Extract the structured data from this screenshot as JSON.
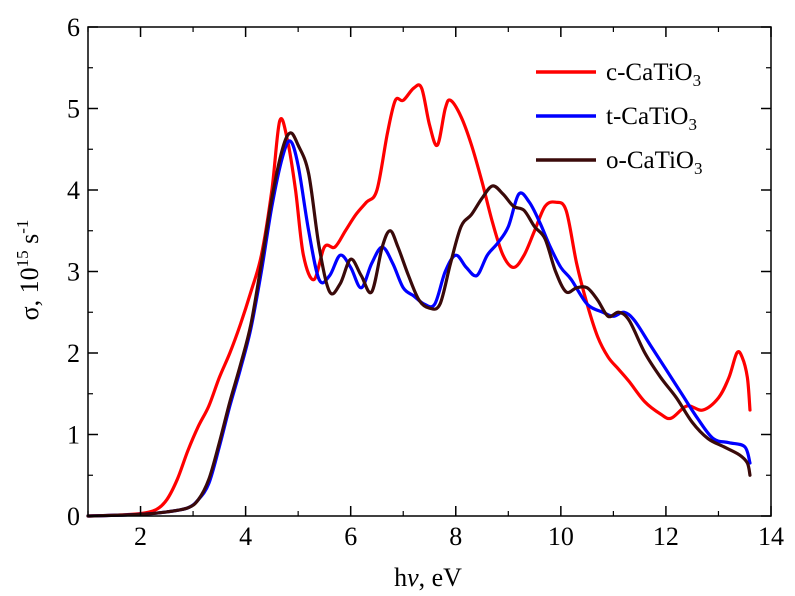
{
  "chart_data": {
    "type": "line",
    "xlabel": {
      "pre": "h",
      "italic": "ν",
      "post": ", eV"
    },
    "ylabel": {
      "main": "σ, 10",
      "exp": "15",
      "unit": " s",
      "unit_exp": "-1"
    },
    "xlim": [
      1,
      14
    ],
    "ylim": [
      0,
      6
    ],
    "xticks": [
      2,
      4,
      6,
      8,
      10,
      12,
      14
    ],
    "yticks": [
      0,
      1,
      2,
      3,
      4,
      5,
      6
    ],
    "grid": false,
    "legend_position": "top-right",
    "series": [
      {
        "name": "c-CaTiO",
        "name_sub": "3",
        "color": "#ff0000",
        "x": [
          1.0,
          1.5,
          2.0,
          2.3,
          2.5,
          2.7,
          2.9,
          3.1,
          3.3,
          3.5,
          3.7,
          3.9,
          4.1,
          4.3,
          4.5,
          4.65,
          4.8,
          4.95,
          5.1,
          5.3,
          5.5,
          5.7,
          5.9,
          6.1,
          6.3,
          6.5,
          6.7,
          6.85,
          7.0,
          7.2,
          7.35,
          7.5,
          7.65,
          7.8,
          7.9,
          8.1,
          8.3,
          8.5,
          8.7,
          8.9,
          9.1,
          9.3,
          9.5,
          9.7,
          9.9,
          10.1,
          10.3,
          10.5,
          10.7,
          10.9,
          11.1,
          11.3,
          11.6,
          11.9,
          12.1,
          12.4,
          12.7,
          13.0,
          13.2,
          13.35,
          13.45,
          13.55,
          13.6
        ],
        "y": [
          0.0,
          0.01,
          0.03,
          0.08,
          0.2,
          0.45,
          0.8,
          1.1,
          1.35,
          1.7,
          2.0,
          2.35,
          2.75,
          3.2,
          4.0,
          4.85,
          4.6,
          4.0,
          3.2,
          2.9,
          3.3,
          3.3,
          3.5,
          3.7,
          3.85,
          4.0,
          4.7,
          5.1,
          5.1,
          5.25,
          5.25,
          4.8,
          4.55,
          5.0,
          5.1,
          4.9,
          4.55,
          4.1,
          3.6,
          3.2,
          3.05,
          3.2,
          3.5,
          3.8,
          3.85,
          3.75,
          3.1,
          2.6,
          2.2,
          1.95,
          1.8,
          1.65,
          1.4,
          1.25,
          1.2,
          1.35,
          1.3,
          1.45,
          1.7,
          2.0,
          1.95,
          1.7,
          1.3
        ]
      },
      {
        "name": "t-CaTiO",
        "name_sub": "3",
        "color": "#0000ff",
        "x": [
          1.0,
          2.0,
          2.5,
          2.9,
          3.1,
          3.3,
          3.5,
          3.7,
          3.9,
          4.1,
          4.3,
          4.5,
          4.7,
          4.85,
          5.0,
          5.2,
          5.4,
          5.6,
          5.8,
          6.0,
          6.2,
          6.4,
          6.6,
          6.8,
          7.0,
          7.2,
          7.4,
          7.6,
          7.8,
          8.0,
          8.2,
          8.4,
          8.6,
          8.8,
          9.0,
          9.2,
          9.4,
          9.6,
          9.8,
          10.0,
          10.2,
          10.5,
          10.8,
          11.0,
          11.2,
          11.4,
          11.7,
          12.0,
          12.3,
          12.6,
          12.9,
          13.2,
          13.5,
          13.6
        ],
        "y": [
          0.0,
          0.02,
          0.05,
          0.1,
          0.2,
          0.4,
          0.85,
          1.35,
          1.8,
          2.3,
          3.0,
          3.8,
          4.4,
          4.6,
          4.3,
          3.5,
          2.9,
          2.95,
          3.2,
          3.05,
          2.8,
          3.1,
          3.3,
          3.1,
          2.8,
          2.7,
          2.6,
          2.6,
          3.0,
          3.2,
          3.05,
          2.95,
          3.2,
          3.35,
          3.55,
          3.95,
          3.85,
          3.6,
          3.3,
          3.05,
          2.9,
          2.6,
          2.5,
          2.45,
          2.5,
          2.4,
          2.1,
          1.8,
          1.5,
          1.2,
          0.95,
          0.9,
          0.85,
          0.65
        ]
      },
      {
        "name": "o-CaTiO",
        "name_sub": "3",
        "color": "#3a0a0a",
        "x": [
          1.0,
          2.0,
          2.5,
          2.9,
          3.1,
          3.3,
          3.5,
          3.7,
          3.9,
          4.1,
          4.3,
          4.5,
          4.7,
          4.85,
          5.0,
          5.2,
          5.4,
          5.6,
          5.8,
          6.0,
          6.2,
          6.4,
          6.6,
          6.75,
          6.9,
          7.1,
          7.3,
          7.5,
          7.7,
          7.9,
          8.1,
          8.3,
          8.5,
          8.7,
          8.9,
          9.1,
          9.3,
          9.5,
          9.7,
          9.9,
          10.1,
          10.3,
          10.5,
          10.7,
          10.9,
          11.1,
          11.3,
          11.6,
          11.9,
          12.2,
          12.5,
          12.8,
          13.1,
          13.4,
          13.55,
          13.6
        ],
        "y": [
          0.0,
          0.02,
          0.05,
          0.1,
          0.2,
          0.45,
          0.9,
          1.4,
          1.85,
          2.35,
          3.1,
          3.9,
          4.5,
          4.7,
          4.55,
          4.2,
          3.3,
          2.75,
          2.85,
          3.15,
          2.95,
          2.75,
          3.3,
          3.5,
          3.3,
          2.95,
          2.65,
          2.55,
          2.6,
          3.1,
          3.55,
          3.7,
          3.9,
          4.05,
          3.95,
          3.8,
          3.75,
          3.55,
          3.4,
          3.0,
          2.75,
          2.8,
          2.8,
          2.65,
          2.45,
          2.5,
          2.4,
          2.0,
          1.7,
          1.45,
          1.15,
          0.95,
          0.85,
          0.75,
          0.65,
          0.5
        ]
      }
    ]
  }
}
